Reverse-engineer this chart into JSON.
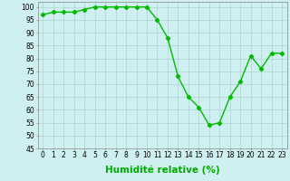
{
  "x": [
    0,
    1,
    2,
    3,
    4,
    5,
    6,
    7,
    8,
    9,
    10,
    11,
    12,
    13,
    14,
    15,
    16,
    17,
    18,
    19,
    20,
    21,
    22,
    23
  ],
  "y": [
    97,
    98,
    98,
    98,
    99,
    100,
    100,
    100,
    100,
    100,
    100,
    95,
    88,
    73,
    65,
    61,
    54,
    55,
    65,
    71,
    81,
    76,
    82,
    82
  ],
  "line_color": "#00bb00",
  "marker": "D",
  "marker_size": 2.2,
  "bg_color": "#cff0f0",
  "grid_color": "#aacccc",
  "xlabel": "Humidité relative (%)",
  "xlabel_color": "#00aa00",
  "ylim": [
    45,
    102
  ],
  "yticks": [
    45,
    50,
    55,
    60,
    65,
    70,
    75,
    80,
    85,
    90,
    95,
    100
  ],
  "xticks": [
    0,
    1,
    2,
    3,
    4,
    5,
    6,
    7,
    8,
    9,
    10,
    11,
    12,
    13,
    14,
    15,
    16,
    17,
    18,
    19,
    20,
    21,
    22,
    23
  ],
  "tick_fontsize": 5.5,
  "xlabel_fontsize": 7.5,
  "linewidth": 1.0
}
